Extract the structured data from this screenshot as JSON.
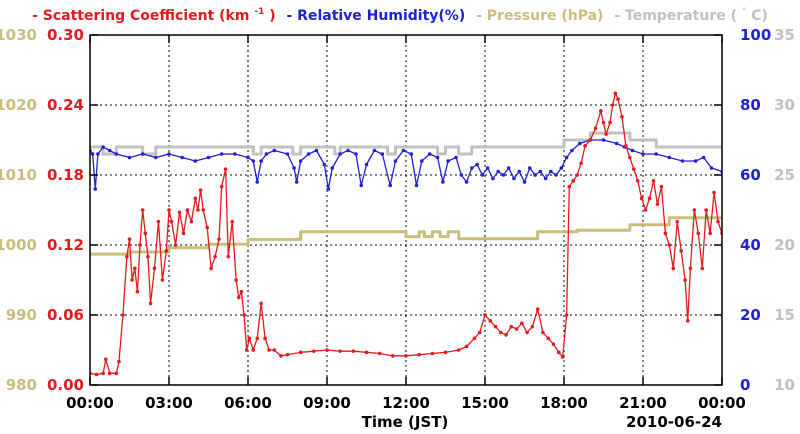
{
  "chart_data": {
    "type": "line",
    "date": "2010-06-24",
    "xlabel": "Time (JST)",
    "x_tick_labels": [
      "00:00",
      "03:00",
      "06:00",
      "09:00",
      "12:00",
      "15:00",
      "18:00",
      "21:00",
      "00:00"
    ],
    "x_range_hours": [
      0,
      24
    ],
    "legend": [
      {
        "dash": "-",
        "text": "Scattering Coefficient (km",
        "sup": "-1",
        "close": ")",
        "color": "#e41a1c"
      },
      {
        "dash": "-",
        "text": "Relative Humidity(%)",
        "color": "#1f1fd6"
      },
      {
        "dash": "-",
        "text": "Pressure (hPa)",
        "color": "#c9bd7c"
      },
      {
        "dash": "-",
        "text": "Temperature (",
        "sup": "°",
        "close": "C)",
        "color": "#c0c0c0"
      }
    ],
    "axes": {
      "scattering": {
        "side": "left-inner",
        "min": 0,
        "max": 0.3,
        "tick_labels": [
          "0.00",
          "0.06",
          "0.12",
          "0.18",
          "0.24",
          "0.30"
        ],
        "color": "#e41a1c"
      },
      "pressure": {
        "side": "left-outer",
        "min": 980,
        "max": 1030,
        "tick_labels": [
          "980",
          "990",
          "1000",
          "1010",
          "1020",
          "1030"
        ],
        "color": "#c9bd7c"
      },
      "humidity": {
        "side": "right-inner",
        "min": 0,
        "max": 100,
        "tick_labels": [
          "0",
          "20",
          "40",
          "60",
          "80",
          "100"
        ],
        "color": "#1f1fd6"
      },
      "temperature": {
        "side": "right-outer",
        "min": 10,
        "max": 35,
        "tick_labels": [
          "10",
          "15",
          "20",
          "25",
          "30",
          "35"
        ],
        "color": "#c0c0c0"
      }
    },
    "series": [
      {
        "name": "Scattering Coefficient",
        "axis": "scattering",
        "color": "#e41a1c",
        "markers": true,
        "points": [
          [
            0.0,
            0.01
          ],
          [
            0.25,
            0.009
          ],
          [
            0.5,
            0.01
          ],
          [
            0.6,
            0.022
          ],
          [
            0.75,
            0.01
          ],
          [
            1.0,
            0.01
          ],
          [
            1.1,
            0.02
          ],
          [
            1.25,
            0.06
          ],
          [
            1.4,
            0.11
          ],
          [
            1.5,
            0.125
          ],
          [
            1.6,
            0.09
          ],
          [
            1.7,
            0.1
          ],
          [
            1.8,
            0.08
          ],
          [
            1.9,
            0.12
          ],
          [
            2.0,
            0.15
          ],
          [
            2.1,
            0.13
          ],
          [
            2.2,
            0.11
          ],
          [
            2.3,
            0.07
          ],
          [
            2.45,
            0.1
          ],
          [
            2.6,
            0.14
          ],
          [
            2.75,
            0.09
          ],
          [
            2.9,
            0.115
          ],
          [
            3.0,
            0.15
          ],
          [
            3.1,
            0.14
          ],
          [
            3.25,
            0.12
          ],
          [
            3.4,
            0.148
          ],
          [
            3.55,
            0.13
          ],
          [
            3.7,
            0.15
          ],
          [
            3.85,
            0.14
          ],
          [
            4.0,
            0.16
          ],
          [
            4.1,
            0.15
          ],
          [
            4.2,
            0.167
          ],
          [
            4.3,
            0.15
          ],
          [
            4.45,
            0.135
          ],
          [
            4.6,
            0.1
          ],
          [
            4.75,
            0.11
          ],
          [
            4.9,
            0.125
          ],
          [
            5.0,
            0.17
          ],
          [
            5.15,
            0.185
          ],
          [
            5.25,
            0.11
          ],
          [
            5.4,
            0.14
          ],
          [
            5.55,
            0.09
          ],
          [
            5.65,
            0.075
          ],
          [
            5.75,
            0.08
          ],
          [
            5.85,
            0.06
          ],
          [
            5.95,
            0.03
          ],
          [
            6.05,
            0.04
          ],
          [
            6.2,
            0.03
          ],
          [
            6.35,
            0.04
          ],
          [
            6.5,
            0.07
          ],
          [
            6.65,
            0.04
          ],
          [
            6.8,
            0.03
          ],
          [
            7.0,
            0.03
          ],
          [
            7.25,
            0.025
          ],
          [
            7.5,
            0.026
          ],
          [
            8.0,
            0.028
          ],
          [
            8.5,
            0.029
          ],
          [
            9.0,
            0.03
          ],
          [
            9.5,
            0.029
          ],
          [
            10.0,
            0.029
          ],
          [
            10.5,
            0.028
          ],
          [
            11.0,
            0.027
          ],
          [
            11.5,
            0.025
          ],
          [
            12.0,
            0.025
          ],
          [
            12.5,
            0.026
          ],
          [
            13.0,
            0.027
          ],
          [
            13.5,
            0.028
          ],
          [
            14.0,
            0.03
          ],
          [
            14.3,
            0.033
          ],
          [
            14.6,
            0.04
          ],
          [
            14.8,
            0.045
          ],
          [
            15.0,
            0.06
          ],
          [
            15.2,
            0.055
          ],
          [
            15.4,
            0.05
          ],
          [
            15.6,
            0.045
          ],
          [
            15.8,
            0.043
          ],
          [
            16.0,
            0.05
          ],
          [
            16.2,
            0.048
          ],
          [
            16.4,
            0.053
          ],
          [
            16.6,
            0.045
          ],
          [
            16.8,
            0.05
          ],
          [
            17.0,
            0.065
          ],
          [
            17.2,
            0.045
          ],
          [
            17.4,
            0.04
          ],
          [
            17.6,
            0.035
          ],
          [
            17.8,
            0.028
          ],
          [
            17.95,
            0.024
          ],
          [
            18.1,
            0.06
          ],
          [
            18.2,
            0.17
          ],
          [
            18.35,
            0.175
          ],
          [
            18.5,
            0.18
          ],
          [
            18.65,
            0.19
          ],
          [
            18.8,
            0.205
          ],
          [
            19.0,
            0.21
          ],
          [
            19.2,
            0.22
          ],
          [
            19.4,
            0.235
          ],
          [
            19.5,
            0.225
          ],
          [
            19.6,
            0.215
          ],
          [
            19.75,
            0.225
          ],
          [
            19.85,
            0.24
          ],
          [
            19.95,
            0.25
          ],
          [
            20.05,
            0.245
          ],
          [
            20.2,
            0.23
          ],
          [
            20.35,
            0.205
          ],
          [
            20.5,
            0.195
          ],
          [
            20.65,
            0.185
          ],
          [
            20.8,
            0.175
          ],
          [
            20.95,
            0.16
          ],
          [
            21.1,
            0.15
          ],
          [
            21.25,
            0.16
          ],
          [
            21.4,
            0.175
          ],
          [
            21.55,
            0.155
          ],
          [
            21.7,
            0.17
          ],
          [
            21.85,
            0.13
          ],
          [
            22.0,
            0.12
          ],
          [
            22.15,
            0.1
          ],
          [
            22.3,
            0.14
          ],
          [
            22.45,
            0.115
          ],
          [
            22.6,
            0.09
          ],
          [
            22.7,
            0.055
          ],
          [
            22.8,
            0.1
          ],
          [
            22.95,
            0.15
          ],
          [
            23.1,
            0.13
          ],
          [
            23.25,
            0.1
          ],
          [
            23.4,
            0.15
          ],
          [
            23.55,
            0.13
          ],
          [
            23.7,
            0.165
          ],
          [
            23.85,
            0.14
          ],
          [
            24.0,
            0.13
          ]
        ]
      },
      {
        "name": "Relative Humidity",
        "axis": "humidity",
        "color": "#1f1fd6",
        "markers": true,
        "points": [
          [
            0.0,
            67
          ],
          [
            0.1,
            66
          ],
          [
            0.2,
            56
          ],
          [
            0.3,
            66
          ],
          [
            0.5,
            68
          ],
          [
            0.75,
            67
          ],
          [
            1.0,
            66
          ],
          [
            1.5,
            65
          ],
          [
            2.0,
            66
          ],
          [
            2.5,
            65
          ],
          [
            3.0,
            66
          ],
          [
            3.5,
            65
          ],
          [
            4.0,
            64
          ],
          [
            4.5,
            65
          ],
          [
            5.0,
            66
          ],
          [
            5.5,
            66
          ],
          [
            6.0,
            65
          ],
          [
            6.2,
            64
          ],
          [
            6.35,
            58
          ],
          [
            6.5,
            64
          ],
          [
            6.7,
            66
          ],
          [
            7.0,
            67
          ],
          [
            7.5,
            66
          ],
          [
            7.75,
            62
          ],
          [
            7.85,
            58
          ],
          [
            8.0,
            64
          ],
          [
            8.3,
            66
          ],
          [
            8.6,
            67
          ],
          [
            8.9,
            63
          ],
          [
            9.05,
            56
          ],
          [
            9.2,
            62
          ],
          [
            9.5,
            66
          ],
          [
            9.8,
            67
          ],
          [
            10.1,
            66
          ],
          [
            10.3,
            57
          ],
          [
            10.5,
            63
          ],
          [
            10.8,
            67
          ],
          [
            11.1,
            66
          ],
          [
            11.4,
            57
          ],
          [
            11.6,
            64
          ],
          [
            11.9,
            67
          ],
          [
            12.2,
            66
          ],
          [
            12.4,
            57
          ],
          [
            12.6,
            64
          ],
          [
            12.9,
            66
          ],
          [
            13.2,
            65
          ],
          [
            13.4,
            58
          ],
          [
            13.6,
            64
          ],
          [
            13.9,
            65
          ],
          [
            14.1,
            60
          ],
          [
            14.3,
            58
          ],
          [
            14.5,
            62
          ],
          [
            14.7,
            63
          ],
          [
            14.9,
            60
          ],
          [
            15.1,
            62
          ],
          [
            15.3,
            59
          ],
          [
            15.5,
            61
          ],
          [
            15.7,
            60
          ],
          [
            15.9,
            62
          ],
          [
            16.1,
            59
          ],
          [
            16.3,
            61
          ],
          [
            16.5,
            58
          ],
          [
            16.7,
            62
          ],
          [
            16.9,
            60
          ],
          [
            17.1,
            61
          ],
          [
            17.3,
            59
          ],
          [
            17.5,
            61
          ],
          [
            17.7,
            60
          ],
          [
            17.9,
            62
          ],
          [
            18.1,
            65
          ],
          [
            18.3,
            67
          ],
          [
            18.6,
            69
          ],
          [
            19.0,
            70
          ],
          [
            19.5,
            70
          ],
          [
            20.0,
            69
          ],
          [
            20.3,
            68
          ],
          [
            20.6,
            67
          ],
          [
            21.0,
            66
          ],
          [
            21.5,
            66
          ],
          [
            22.0,
            65
          ],
          [
            22.5,
            64
          ],
          [
            23.0,
            64
          ],
          [
            23.3,
            65
          ],
          [
            23.6,
            62
          ],
          [
            24.0,
            61
          ]
        ]
      },
      {
        "name": "Pressure",
        "axis": "pressure",
        "color": "#c9bd7c",
        "markers": false,
        "step": true,
        "points": [
          [
            0.0,
            998.7
          ],
          [
            1.5,
            999.0
          ],
          [
            3.0,
            999.6
          ],
          [
            4.5,
            1000.1
          ],
          [
            6.0,
            1000.8
          ],
          [
            8.0,
            1001.9
          ],
          [
            12.0,
            1001.2
          ],
          [
            12.5,
            1001.9
          ],
          [
            12.7,
            1001.2
          ],
          [
            13.0,
            1001.9
          ],
          [
            13.3,
            1001.2
          ],
          [
            13.6,
            1001.9
          ],
          [
            14.0,
            1000.9
          ],
          [
            17.0,
            1001.9
          ],
          [
            18.5,
            1002.1
          ],
          [
            20.5,
            1002.9
          ],
          [
            22.0,
            1003.9
          ],
          [
            24.0,
            1003.9
          ]
        ]
      },
      {
        "name": "Temperature",
        "axis": "temperature",
        "color": "#c0c0c0",
        "markers": false,
        "step": true,
        "points": [
          [
            0.0,
            27.0
          ],
          [
            0.5,
            26.5
          ],
          [
            1.0,
            27.0
          ],
          [
            2.0,
            26.5
          ],
          [
            2.5,
            27.0
          ],
          [
            3.5,
            27.0
          ],
          [
            6.0,
            27.0
          ],
          [
            6.2,
            26.5
          ],
          [
            6.5,
            27.0
          ],
          [
            7.7,
            26.5
          ],
          [
            8.0,
            27.0
          ],
          [
            9.0,
            27.0
          ],
          [
            9.3,
            26.5
          ],
          [
            9.5,
            27.0
          ],
          [
            11.0,
            27.0
          ],
          [
            11.3,
            26.5
          ],
          [
            11.6,
            27.0
          ],
          [
            13.0,
            27.0
          ],
          [
            13.2,
            26.5
          ],
          [
            13.5,
            27.0
          ],
          [
            14.0,
            26.5
          ],
          [
            14.5,
            27.0
          ],
          [
            17.5,
            27.0
          ],
          [
            18.0,
            27.5
          ],
          [
            19.0,
            28.0
          ],
          [
            20.5,
            27.5
          ],
          [
            21.5,
            27.0
          ],
          [
            24.0,
            27.0
          ]
        ]
      }
    ]
  }
}
